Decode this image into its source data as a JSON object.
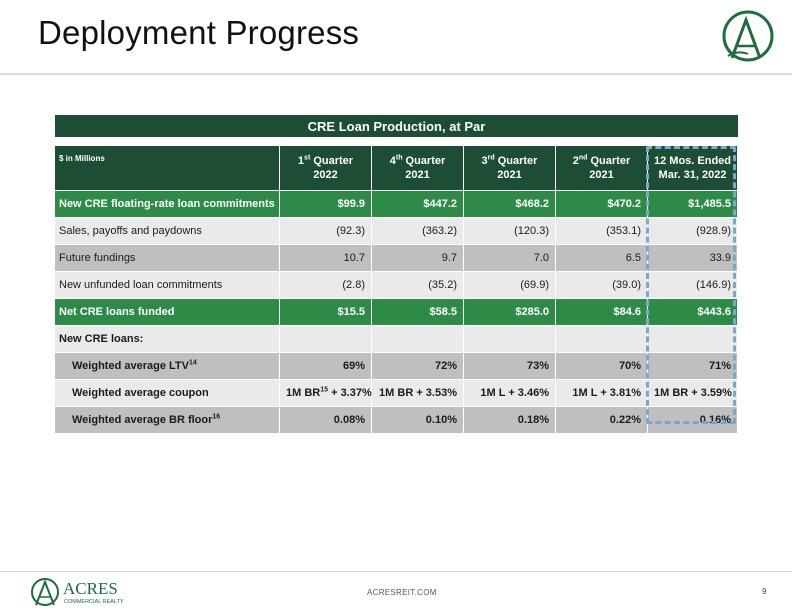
{
  "slide": {
    "title": "Deployment Progress",
    "footer_url": "ACRESREIT.COM",
    "page_number": "9"
  },
  "logo": {
    "brand": "ACRES",
    "tagline": "COMMERCIAL REALTY",
    "color": "#1e6b3f"
  },
  "colors": {
    "dark_green": "#1e4d36",
    "green": "#2e8b47",
    "light_gray": "#eaeaea",
    "mid_gray": "#bfbfbf",
    "highlight": "#7aa9c8"
  },
  "table": {
    "title": "CRE Loan Production, at Par",
    "header_label": "$ in Millions",
    "columns": [
      {
        "main": "1",
        "sup": "st",
        "rest": " Quarter",
        "line2": "2022"
      },
      {
        "main": "4",
        "sup": "th",
        "rest": " Quarter",
        "line2": "2021"
      },
      {
        "main": "3",
        "sup": "rd",
        "rest": " Quarter",
        "line2": "2021"
      },
      {
        "main": "2",
        "sup": "nd",
        "rest": " Quarter",
        "line2": "2021"
      },
      {
        "main": "12 Mos. Ended",
        "sup": "",
        "rest": "",
        "line2": "Mar. 31, 2022"
      }
    ],
    "rows": [
      {
        "label": "New CRE floating-rate loan commitments",
        "values": [
          "$99.9",
          "$447.2",
          "$468.2",
          "$470.2",
          "$1,485.5"
        ]
      },
      {
        "label": "Sales, payoffs and paydowns",
        "values": [
          "(92.3)",
          "(363.2)",
          "(120.3)",
          "(353.1)",
          "(928.9)"
        ]
      },
      {
        "label": "Future fundings",
        "values": [
          "10.7",
          "9.7",
          "7.0",
          "6.5",
          "33.9"
        ]
      },
      {
        "label": "New unfunded loan commitments",
        "values": [
          "(2.8)",
          "(35.2)",
          "(69.9)",
          "(39.0)",
          "(146.9)"
        ]
      },
      {
        "label": "Net CRE loans funded",
        "values": [
          "$15.5",
          "$58.5",
          "$285.0",
          "$84.6",
          "$443.6"
        ]
      },
      {
        "label": "New CRE loans:",
        "values": [
          "",
          "",
          "",
          "",
          ""
        ]
      },
      {
        "label": "Weighted average LTV",
        "sup": "14",
        "values": [
          "69%",
          "72%",
          "73%",
          "70%",
          "71%"
        ]
      },
      {
        "label": "Weighted average coupon",
        "values": [
          "1M BR",
          "1M BR + 3.53%",
          "1M L + 3.46%",
          "1M L + 3.81%",
          "1M BR + 3.59%"
        ],
        "first_sup": "15",
        "first_rest": " + 3.37%"
      },
      {
        "label": "Weighted average BR floor",
        "sup": "16",
        "values": [
          "0.08%",
          "0.10%",
          "0.18%",
          "0.22%",
          "0.16%"
        ]
      }
    ]
  }
}
